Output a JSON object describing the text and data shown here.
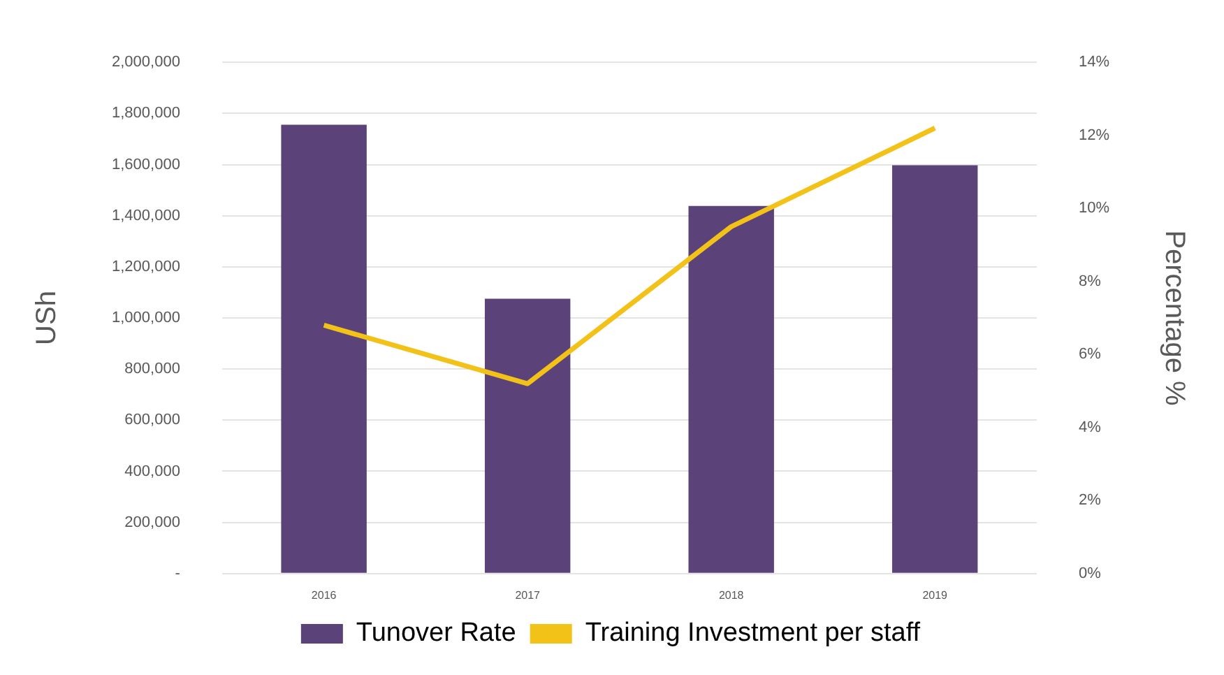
{
  "chart_data": {
    "type": "bar",
    "ylabel": "USh",
    "y2label": "Percentage %",
    "categories": [
      "2016",
      "2017",
      "2018",
      "2019"
    ],
    "series": [
      {
        "name": "Tunover Rate",
        "color": "#5b4279",
        "values": [
          1756000,
          1075000,
          1438000,
          1597000
        ]
      },
      {
        "name": "Training Investment per staff",
        "type": "line",
        "axis": "y2",
        "color": "#f2c218",
        "values": [
          6.8,
          5.2,
          9.5,
          12.2
        ]
      }
    ],
    "ylim": [
      0,
      2000000
    ],
    "yticks": [
      {
        "value": 0,
        "label": "-"
      },
      {
        "value": 200000,
        "label": "200,000"
      },
      {
        "value": 400000,
        "label": "400,000"
      },
      {
        "value": 600000,
        "label": "600,000"
      },
      {
        "value": 800000,
        "label": "800,000"
      },
      {
        "value": 1000000,
        "label": "1,000,000"
      },
      {
        "value": 1200000,
        "label": "1,200,000"
      },
      {
        "value": 1400000,
        "label": "1,400,000"
      },
      {
        "value": 1600000,
        "label": "1,600,000"
      },
      {
        "value": 1800000,
        "label": "1,800,000"
      },
      {
        "value": 2000000,
        "label": "2,000,000"
      }
    ],
    "y2lim": [
      0,
      14
    ],
    "y2ticks": [
      {
        "value": 0,
        "label": "0%"
      },
      {
        "value": 2,
        "label": "2%"
      },
      {
        "value": 4,
        "label": "4%"
      },
      {
        "value": 6,
        "label": "6%"
      },
      {
        "value": 8,
        "label": "8%"
      },
      {
        "value": 10,
        "label": "10%"
      },
      {
        "value": 12,
        "label": "12%"
      },
      {
        "value": 14,
        "label": "14%"
      }
    ],
    "grid": "y",
    "legend": "bottom",
    "marker": "none",
    "line_style": "solid"
  }
}
